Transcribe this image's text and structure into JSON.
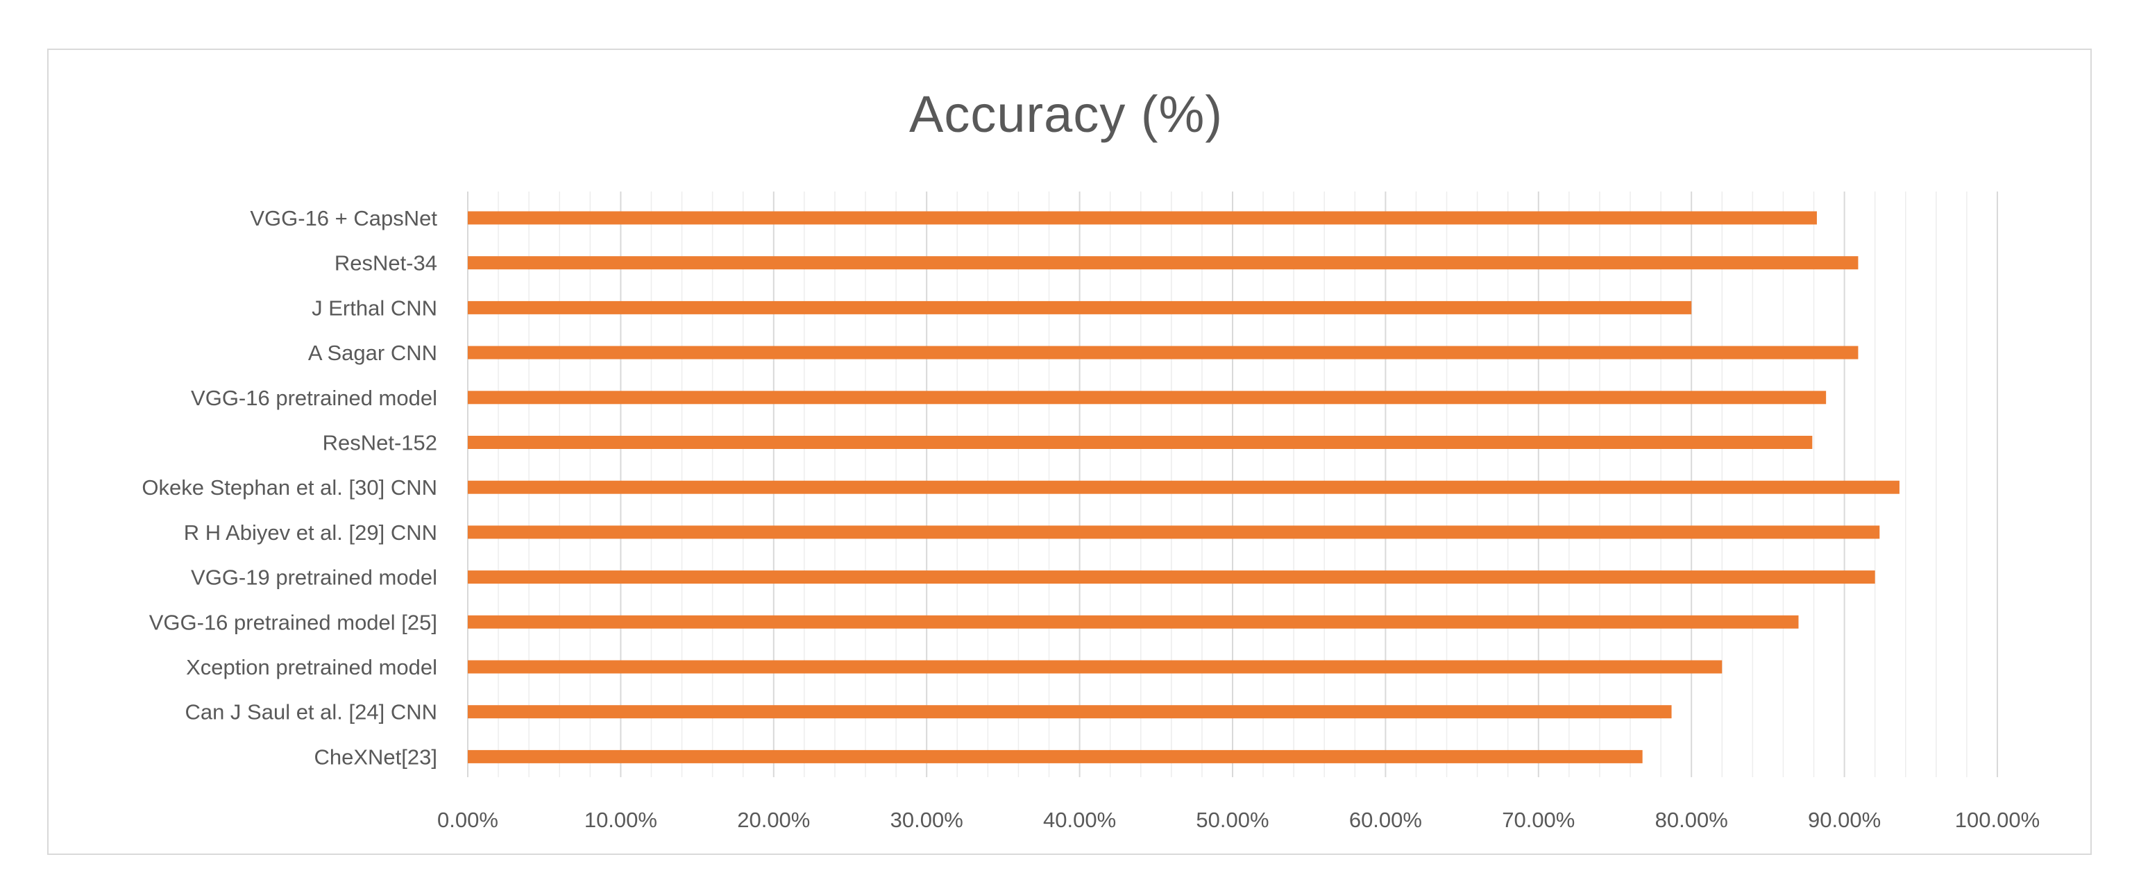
{
  "chart_data": {
    "type": "bar",
    "orientation": "horizontal",
    "title": "Accuracy (%)",
    "xlabel": "",
    "ylabel": "",
    "categories": [
      "VGG-16 + CapsNet",
      "ResNet-34",
      "J Erthal CNN",
      "A Sagar CNN",
      "VGG-16 pretrained model",
      "ResNet-152",
      "Okeke Stephan et al. [30] CNN",
      "R H Abiyev et al. [29] CNN",
      "VGG-19 pretrained model",
      "VGG-16 pretrained model [25]",
      "Xception pretrained model",
      "Can J Saul et al. [24] CNN",
      "CheXNet[23]"
    ],
    "values": [
      88.2,
      90.9,
      80.0,
      90.9,
      88.8,
      87.9,
      93.6,
      92.3,
      92.0,
      87.0,
      82.0,
      78.7,
      76.8
    ],
    "xlim": [
      0,
      100
    ],
    "x_ticks": [
      "0.00%",
      "10.00%",
      "20.00%",
      "30.00%",
      "40.00%",
      "50.00%",
      "60.00%",
      "70.00%",
      "80.00%",
      "90.00%",
      "100.00%"
    ],
    "minor_gridlines": true,
    "legend": "none",
    "bar_color": "#ED7D31",
    "grid_color": "#D9D9D9",
    "text_color": "#595959"
  }
}
